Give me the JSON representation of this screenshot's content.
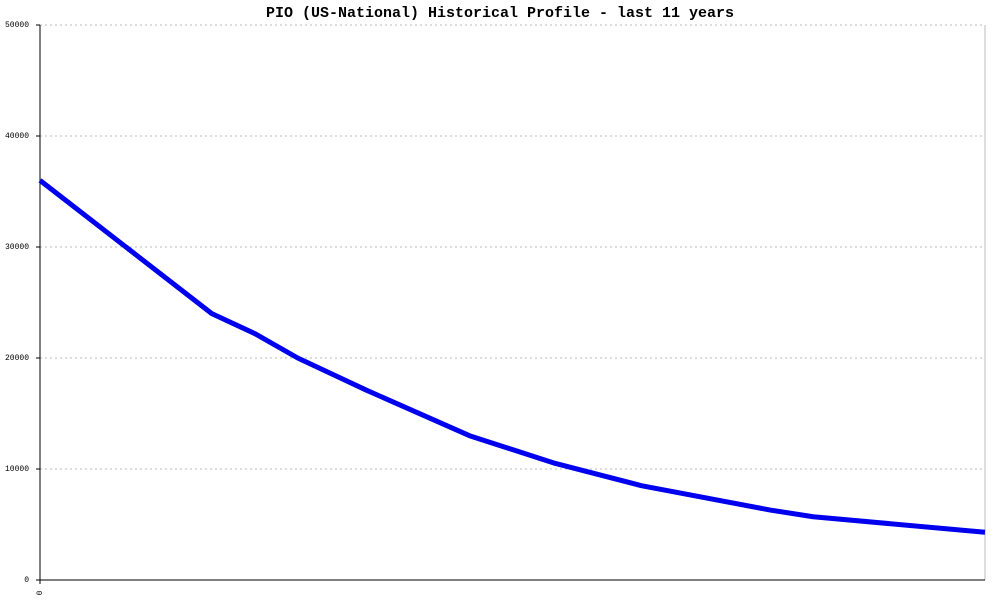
{
  "chart_data": {
    "type": "line",
    "title": "PIO (US-National) Historical Profile - last 11 years",
    "x": [
      0,
      2,
      2.5,
      3,
      3.8,
      5,
      6,
      7,
      8.5,
      9,
      11
    ],
    "series": [
      {
        "name": "PIO",
        "color": "#0000ee",
        "values": [
          36000,
          24000,
          22200,
          20000,
          17100,
          13000,
          10500,
          8500,
          6300,
          5700,
          4300
        ]
      }
    ],
    "xlim": [
      0,
      11
    ],
    "xticks": [
      0
    ],
    "ylim": [
      0,
      50000
    ],
    "yticks": [
      0,
      10000,
      20000,
      30000,
      40000,
      50000
    ],
    "grid": true
  }
}
